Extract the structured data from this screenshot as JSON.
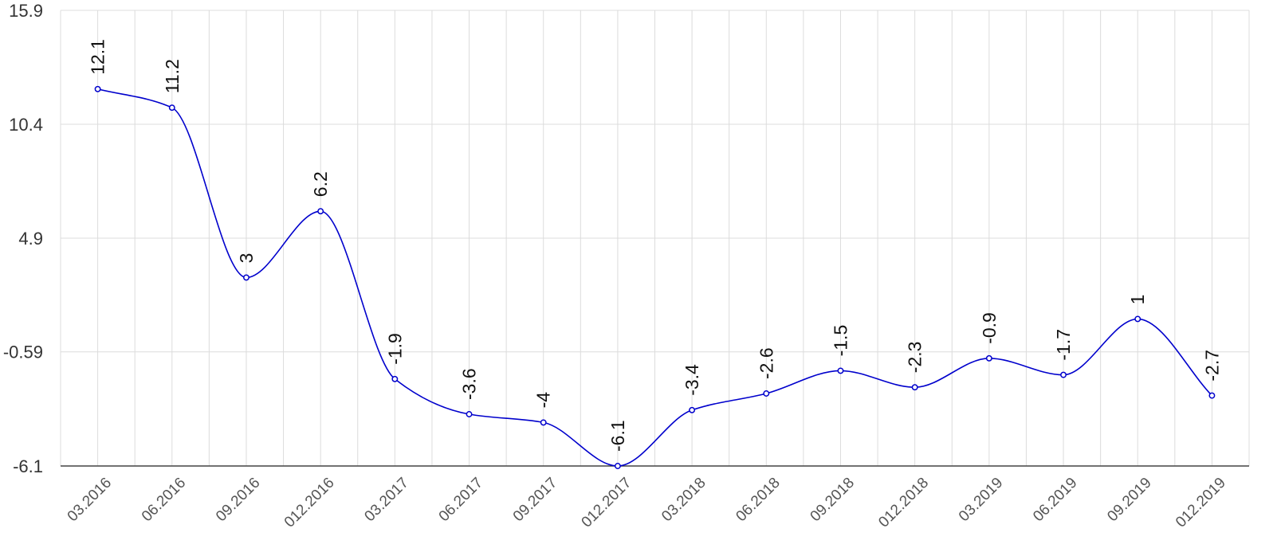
{
  "chart_data": {
    "type": "line",
    "title": "",
    "xlabel": "",
    "ylabel": "",
    "x": [
      "03.2016",
      "06.2016",
      "09.2016",
      "012.2016",
      "03.2017",
      "06.2017",
      "09.2017",
      "012.2017",
      "03.2018",
      "06.2018",
      "09.2018",
      "012.2018",
      "03.2019",
      "06.2019",
      "09.2019",
      "012.2019"
    ],
    "series": [
      {
        "values": [
          12.1,
          11.2,
          3,
          6.2,
          -1.9,
          -3.6,
          -4,
          -6.1,
          -3.4,
          -2.6,
          -1.5,
          -2.3,
          -0.9,
          -1.7,
          1,
          -2.7
        ],
        "labels": [
          "12.1",
          "11.2",
          "3",
          "6.2",
          "-1.9",
          "-3.6",
          "-4",
          "-6.1",
          "-3.4",
          "-2.6",
          "-1.5",
          "-2.3",
          "-0.9",
          "-1.7",
          "1",
          "-2.7"
        ],
        "color": "#0000cc"
      }
    ],
    "ylim": [
      -6.1,
      15.9
    ],
    "y_ticks": [
      "-6.1",
      "-0.59",
      "4.9",
      "10.4",
      "15.9"
    ],
    "grid": true,
    "legend": "none"
  }
}
